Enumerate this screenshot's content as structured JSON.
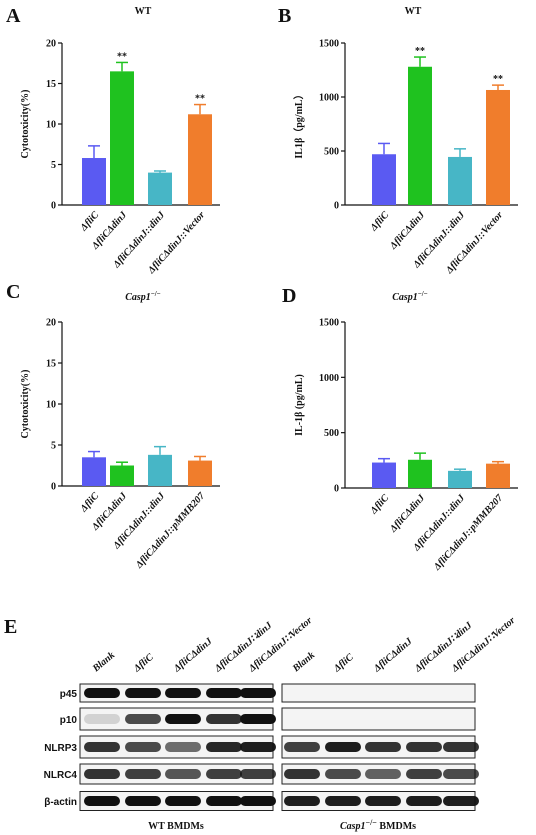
{
  "panel_labels": [
    "A",
    "B",
    "C",
    "D",
    "E"
  ],
  "chart_data": [
    {
      "type": "bar",
      "title": "WT",
      "ylabel": "Cytotoxicity(%)",
      "categories": [
        "ΔfliC",
        "ΔfliCΔdinJ",
        "ΔfliCΔdinJ::dinJ",
        "ΔfliCΔdinJ::Vector"
      ],
      "values": [
        5.8,
        16.5,
        4.0,
        11.2
      ],
      "errors": [
        1.5,
        1.1,
        0.2,
        1.2
      ],
      "colors": [
        "#5a5af2",
        "#1fc21f",
        "#47b6c6",
        "#f07d2c"
      ],
      "significance": [
        null,
        "**",
        null,
        "**"
      ],
      "ylim": [
        0,
        20
      ],
      "yticks": [
        0,
        5,
        10,
        15,
        20
      ]
    },
    {
      "type": "bar",
      "title": "WT",
      "ylabel": "IL1β（pg/mL）",
      "categories": [
        "ΔfliC",
        "ΔfliCΔdinJ",
        "ΔfliCΔdinJ::dinJ",
        "ΔfliCΔdinJ::Vector"
      ],
      "values": [
        470,
        1280,
        445,
        1065
      ],
      "errors": [
        100,
        90,
        75,
        45
      ],
      "colors": [
        "#5a5af2",
        "#1fc21f",
        "#47b6c6",
        "#f07d2c"
      ],
      "significance": [
        null,
        "**",
        null,
        "**"
      ],
      "ylim": [
        0,
        1500
      ],
      "yticks": [
        0,
        500,
        1000,
        1500
      ]
    },
    {
      "type": "bar",
      "title": "Casp1",
      "title_superscript": "−/−",
      "ylabel": "Cytotoxicity(%)",
      "categories": [
        "ΔfliC",
        "ΔfliCΔdinJ",
        "ΔfliCΔdinJ::dinJ",
        "ΔfliCΔdinJ::pMMB207"
      ],
      "values": [
        3.5,
        2.5,
        3.8,
        3.1
      ],
      "errors": [
        0.7,
        0.4,
        1.0,
        0.5
      ],
      "colors": [
        "#5a5af2",
        "#1fc21f",
        "#47b6c6",
        "#f07d2c"
      ],
      "ylim": [
        0,
        20
      ],
      "yticks": [
        0,
        5,
        10,
        15,
        20
      ]
    },
    {
      "type": "bar",
      "title": "Casp1",
      "title_superscript": "−/−",
      "ylabel": "IL-1β (pg/mL)",
      "categories": [
        "ΔfliC",
        "ΔfliCΔdinJ",
        "ΔfliCΔdinJ::dinJ",
        "ΔfliCΔdinJ::pMMB207"
      ],
      "values": [
        230,
        255,
        155,
        220
      ],
      "errors": [
        35,
        60,
        15,
        18
      ],
      "colors": [
        "#5a5af2",
        "#1fc21f",
        "#47b6c6",
        "#f07d2c"
      ],
      "ylim": [
        0,
        1500
      ],
      "yticks": [
        0,
        500,
        1000,
        1500
      ]
    }
  ],
  "blot": {
    "lanes_wt": [
      "Blank",
      "ΔfliC",
      "ΔfliCΔdinJ",
      "ΔfliCΔdinJ∷dinJ",
      "ΔfliCΔdinJ∷Vector"
    ],
    "lanes_ko": [
      "Blank",
      "ΔfliC",
      "ΔfliCΔdinJ",
      "ΔfliCΔdinJ∷dinJ",
      "ΔfliCΔdinJ∷Vector"
    ],
    "rows": [
      "p45",
      "p10",
      "NLRP3",
      "NLRC4",
      "β-actin"
    ],
    "group_wt": "WT BMDMs",
    "group_ko": "Casp1",
    "group_ko_superscript": "−/−",
    "group_ko_rest": " BMDMs"
  }
}
